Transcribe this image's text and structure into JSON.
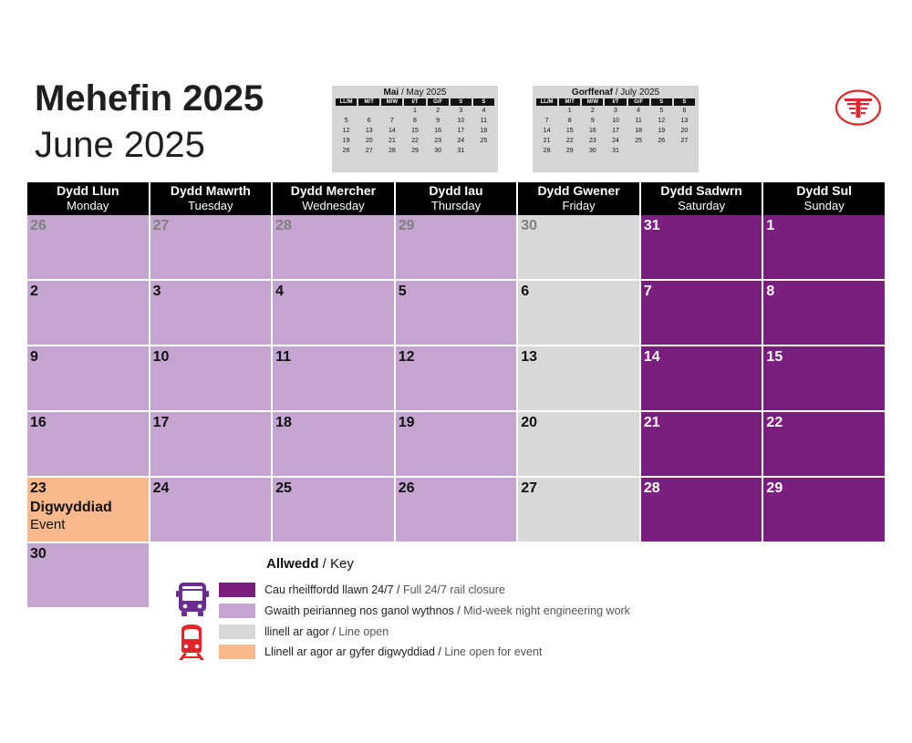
{
  "title": {
    "welsh": "Mehefin 2025",
    "english": "June 2025"
  },
  "mini_calendars": [
    {
      "title_welsh": "Mai",
      "title_english": "May 2025",
      "headers": [
        "LL/M",
        "M/T",
        "M/W",
        "I/T",
        "G/F",
        "S",
        "S"
      ],
      "weeks": [
        [
          "",
          "",
          "",
          "1",
          "2",
          "3",
          "4"
        ],
        [
          "5",
          "6",
          "7",
          "8",
          "9",
          "10",
          "11"
        ],
        [
          "12",
          "13",
          "14",
          "15",
          "16",
          "17",
          "18"
        ],
        [
          "19",
          "20",
          "21",
          "22",
          "23",
          "24",
          "25"
        ],
        [
          "26",
          "27",
          "28",
          "29",
          "30",
          "31",
          ""
        ]
      ]
    },
    {
      "title_welsh": "Gorffenaf",
      "title_english": "July 2025",
      "headers": [
        "LL/M",
        "M/T",
        "M/W",
        "I/T",
        "G/F",
        "S",
        "S"
      ],
      "weeks": [
        [
          "",
          "1",
          "2",
          "3",
          "4",
          "5",
          "6"
        ],
        [
          "7",
          "8",
          "9",
          "10",
          "11",
          "12",
          "13"
        ],
        [
          "14",
          "15",
          "16",
          "17",
          "18",
          "19",
          "20"
        ],
        [
          "21",
          "22",
          "23",
          "24",
          "25",
          "26",
          "27"
        ],
        [
          "28",
          "29",
          "30",
          "31",
          "",
          "",
          ""
        ]
      ]
    }
  ],
  "weekdays": [
    {
      "welsh": "Dydd Llun",
      "english": "Monday"
    },
    {
      "welsh": "Dydd Mawrth",
      "english": "Tuesday"
    },
    {
      "welsh": "Dydd Mercher",
      "english": "Wednesday"
    },
    {
      "welsh": "Dydd Iau",
      "english": "Thursday"
    },
    {
      "welsh": "Dydd Gwener",
      "english": "Friday"
    },
    {
      "welsh": "Dydd Sadwrn",
      "english": "Saturday"
    },
    {
      "welsh": "Dydd Sul",
      "english": "Sunday"
    }
  ],
  "weeks": [
    [
      {
        "day": "26",
        "status": "night",
        "muted": true
      },
      {
        "day": "27",
        "status": "night",
        "muted": true
      },
      {
        "day": "28",
        "status": "night",
        "muted": true
      },
      {
        "day": "29",
        "status": "night",
        "muted": true
      },
      {
        "day": "30",
        "status": "open",
        "muted": true
      },
      {
        "day": "31",
        "status": "full",
        "muted": false
      },
      {
        "day": "1",
        "status": "full",
        "muted": false
      }
    ],
    [
      {
        "day": "2",
        "status": "night"
      },
      {
        "day": "3",
        "status": "night"
      },
      {
        "day": "4",
        "status": "night"
      },
      {
        "day": "5",
        "status": "night"
      },
      {
        "day": "6",
        "status": "open"
      },
      {
        "day": "7",
        "status": "full"
      },
      {
        "day": "8",
        "status": "full"
      }
    ],
    [
      {
        "day": "9",
        "status": "night"
      },
      {
        "day": "10",
        "status": "night"
      },
      {
        "day": "11",
        "status": "night"
      },
      {
        "day": "12",
        "status": "night"
      },
      {
        "day": "13",
        "status": "open"
      },
      {
        "day": "14",
        "status": "full"
      },
      {
        "day": "15",
        "status": "full"
      }
    ],
    [
      {
        "day": "16",
        "status": "night"
      },
      {
        "day": "17",
        "status": "night"
      },
      {
        "day": "18",
        "status": "night"
      },
      {
        "day": "19",
        "status": "night"
      },
      {
        "day": "20",
        "status": "open"
      },
      {
        "day": "21",
        "status": "full"
      },
      {
        "day": "22",
        "status": "full"
      }
    ],
    [
      {
        "day": "23",
        "status": "event",
        "event_welsh": "Digwyddiad",
        "event_english": "Event"
      },
      {
        "day": "24",
        "status": "night"
      },
      {
        "day": "25",
        "status": "night"
      },
      {
        "day": "26",
        "status": "night"
      },
      {
        "day": "27",
        "status": "open"
      },
      {
        "day": "28",
        "status": "full"
      },
      {
        "day": "29",
        "status": "full"
      }
    ],
    [
      {
        "day": "30",
        "status": "night"
      }
    ]
  ],
  "key": {
    "title_welsh": "Allwedd",
    "title_english": "Key",
    "items": [
      {
        "status": "full",
        "welsh": "Cau rheilffordd llawn 24/7",
        "english": "Full 24/7 rail closure",
        "color": "#7a1f7d"
      },
      {
        "status": "night",
        "welsh": "Gwaith peirianneg nos ganol wythnos",
        "english": "Mid-week night engineering work",
        "color": "#c4a5cf"
      },
      {
        "status": "open",
        "welsh": "llinell ar agor",
        "english": "Line open",
        "color": "#d8d8d8"
      },
      {
        "status": "event",
        "welsh": "Llinell ar agor ar gyfer digwyddiad",
        "english": "Line open for event",
        "color": "#f9b98c"
      }
    ],
    "icons": [
      "bus-icon",
      "train-icon"
    ]
  },
  "colors": {
    "full": "#7a1f7d",
    "night": "#c4a5cf",
    "open": "#d8d8d8",
    "event": "#f9b98c",
    "header": "#000000",
    "logo_red": "#e0262b"
  },
  "logo": {
    "icon": "tfw-logo-icon"
  }
}
